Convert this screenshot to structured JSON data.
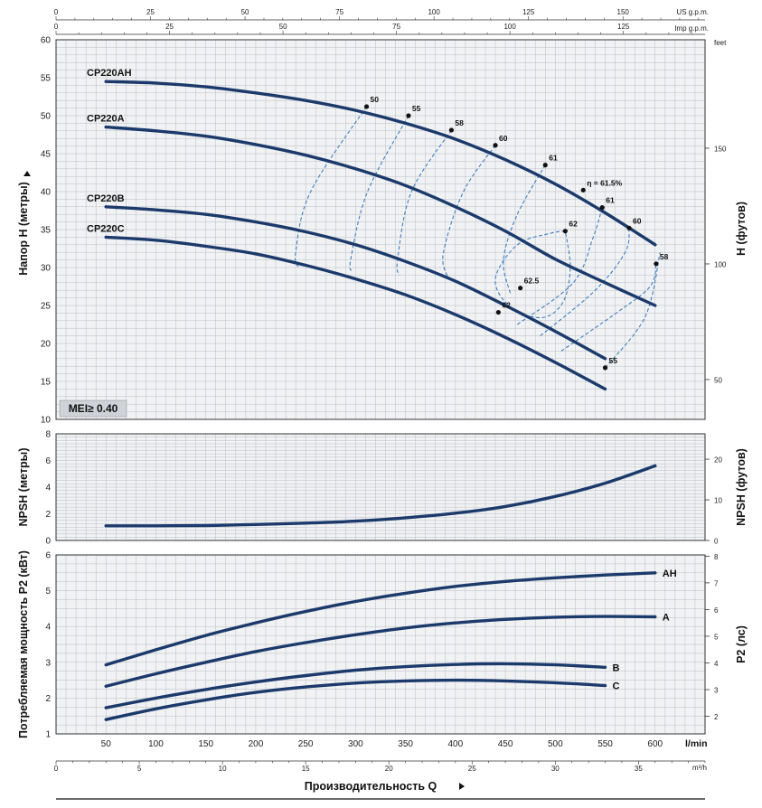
{
  "chart_data": {
    "type": "line",
    "x_axis": {
      "label": "Производительность Q",
      "primary_unit": "l/min",
      "ticks": [
        50,
        100,
        150,
        200,
        250,
        300,
        350,
        400,
        450,
        500,
        550,
        600
      ],
      "range": [
        0,
        650
      ],
      "secondary": [
        {
          "unit": "US g.p.m.",
          "ticks": [
            0,
            25,
            50,
            75,
            100,
            125,
            150
          ],
          "factor": 0.264172
        },
        {
          "unit": "Imp g.p.m.",
          "ticks": [
            0,
            25,
            50,
            75,
            100,
            125
          ],
          "factor": 0.219969
        },
        {
          "unit": "m³/h",
          "ticks": [
            0,
            5,
            10,
            15,
            20,
            25,
            30,
            35
          ],
          "factor": 0.06
        }
      ]
    },
    "panels": [
      {
        "name": "head",
        "ylabel": "Напор H (метры)",
        "ylim": [
          10,
          60
        ],
        "yticks": [
          10,
          15,
          20,
          25,
          30,
          35,
          40,
          45,
          50,
          55,
          60
        ],
        "ylabel_right": "H (футов)",
        "unit_right": "feet",
        "yticks_right": [
          50,
          100,
          150
        ],
        "right_factor": 3.28084,
        "badge": "MEI≥ 0.40",
        "series": [
          {
            "name": "CP220AH",
            "x": [
              50,
              100,
              150,
              200,
              250,
              300,
              350,
              400,
              450,
              500,
              550,
              600
            ],
            "y": [
              54.5,
              54.3,
              53.8,
              53.0,
              52.0,
              50.7,
              49.0,
              46.9,
              44.2,
              41.0,
              37.2,
              33.0
            ]
          },
          {
            "name": "CP220A",
            "x": [
              50,
              100,
              150,
              200,
              250,
              300,
              350,
              400,
              450,
              500,
              550,
              600
            ],
            "y": [
              48.5,
              48.0,
              47.3,
              46.2,
              44.8,
              43.0,
              40.8,
              38.0,
              34.8,
              31.1,
              28.0,
              25.0
            ]
          },
          {
            "name": "CP220B",
            "x": [
              50,
              100,
              150,
              200,
              250,
              300,
              350,
              400,
              450,
              500,
              550
            ],
            "y": [
              38.0,
              37.6,
              37.0,
              36.0,
              34.7,
              33.0,
              30.8,
              28.2,
              25.0,
              21.6,
              18.0
            ]
          },
          {
            "name": "CP220C",
            "x": [
              50,
              100,
              150,
              200,
              250,
              300,
              350,
              400,
              450,
              500,
              550
            ],
            "y": [
              34.0,
              33.6,
              32.8,
              31.8,
              30.3,
              28.5,
              26.4,
              23.8,
              20.8,
              17.5,
              14.0
            ]
          }
        ],
        "efficiency_curves": [
          {
            "label": "50",
            "points": [
              [
                311,
                51.2
              ],
              [
                255,
                40
              ],
              [
                240,
                32
              ],
              [
                243,
                30
              ]
            ]
          },
          {
            "label": "55",
            "points": [
              [
                353,
                50.0
              ],
              [
                312,
                40
              ],
              [
                295,
                31
              ],
              [
                297,
                29.5
              ]
            ]
          },
          {
            "label": "55",
            "points": [
              [
                550,
                16.8
              ],
              [
                590,
                23.5
              ],
              [
                605,
                32
              ]
            ]
          },
          {
            "label": "58",
            "points": [
              [
                396,
                48.1
              ],
              [
                356,
                40
              ],
              [
                342,
                31
              ],
              [
                344,
                29
              ]
            ]
          },
          {
            "label": "58",
            "points": [
              [
                506,
                19
              ],
              [
                561,
                24
              ],
              [
                595,
                27.5
              ],
              [
                601,
                30.5
              ]
            ]
          },
          {
            "label": "60",
            "points": [
              [
                440,
                46.1
              ],
              [
                408,
                40
              ],
              [
                388,
                32
              ],
              [
                392,
                28.8
              ]
            ]
          },
          {
            "label": "60",
            "points": [
              [
                485,
                21
              ],
              [
                540,
                27
              ],
              [
                570,
                32
              ],
              [
                574,
                35.2
              ]
            ]
          },
          {
            "label": "61",
            "points": [
              [
                490,
                43.5
              ],
              [
                462,
                37
              ],
              [
                448,
                31
              ],
              [
                455,
                26.6
              ]
            ]
          },
          {
            "label": "61",
            "points": [
              [
                462,
                22.5
              ],
              [
                518,
                28
              ],
              [
                538,
                34
              ],
              [
                547,
                37.9
              ]
            ]
          },
          {
            "label": "62",
            "points": [
              [
                510,
                34.8
              ],
              [
                495,
                34.5
              ],
              [
                462,
                33
              ],
              [
                440,
                28.5
              ],
              [
                455,
                24.8
              ],
              [
                487,
                23.4
              ],
              [
                508,
                25.5
              ],
              [
                515,
                30
              ],
              [
                510,
                34.8
              ]
            ]
          }
        ],
        "efficiency_labels": [
          {
            "text": "50",
            "x": 311,
            "y": 51.2
          },
          {
            "text": "55",
            "x": 353,
            "y": 50.0
          },
          {
            "text": "58",
            "x": 396,
            "y": 48.1
          },
          {
            "text": "60",
            "x": 440,
            "y": 46.1
          },
          {
            "text": "61",
            "x": 490,
            "y": 43.5
          },
          {
            "text": "η = 61.5%",
            "x": 528,
            "y": 40.2
          },
          {
            "text": "61",
            "x": 547,
            "y": 37.9
          },
          {
            "text": "60",
            "x": 574,
            "y": 35.2
          },
          {
            "text": "58",
            "x": 601,
            "y": 30.5
          },
          {
            "text": "55",
            "x": 550,
            "y": 16.8
          },
          {
            "text": "62",
            "x": 510,
            "y": 34.8
          },
          {
            "text": "62.5",
            "x": 465,
            "y": 27.3
          },
          {
            "text": "62",
            "x": 443,
            "y": 24.1
          }
        ]
      },
      {
        "name": "npsh",
        "ylabel": "NPSH (метры)",
        "ylim": [
          0,
          8
        ],
        "yticks": [
          0,
          2,
          4,
          6,
          8
        ],
        "ylabel_right": "NPSH (футов)",
        "yticks_right": [
          0,
          10,
          20
        ],
        "right_factor": 3.28084,
        "series": [
          {
            "name": "NPSH",
            "x": [
              50,
              100,
              150,
              200,
              250,
              300,
              350,
              400,
              450,
              500,
              550,
              600
            ],
            "y": [
              1.1,
              1.1,
              1.12,
              1.2,
              1.3,
              1.45,
              1.7,
              2.05,
              2.55,
              3.3,
              4.3,
              5.6
            ]
          }
        ]
      },
      {
        "name": "power",
        "ylabel": "Потребляемая мощность P2 (кВт)",
        "ylim": [
          1,
          6
        ],
        "yticks": [
          1,
          2,
          3,
          4,
          5,
          6
        ],
        "ylabel_right": "P2 (лс)",
        "yticks_right": [
          2,
          3,
          4,
          5,
          6,
          7,
          8
        ],
        "right_factor": 1.341,
        "series": [
          {
            "name": "AH",
            "x": [
              50,
              100,
              150,
              200,
              250,
              300,
              350,
              400,
              450,
              500,
              550,
              600
            ],
            "y": [
              2.93,
              3.35,
              3.75,
              4.1,
              4.42,
              4.7,
              4.93,
              5.12,
              5.26,
              5.36,
              5.44,
              5.5
            ]
          },
          {
            "name": "A",
            "x": [
              50,
              100,
              150,
              200,
              250,
              300,
              350,
              400,
              450,
              500,
              550,
              600
            ],
            "y": [
              2.33,
              2.68,
              3.0,
              3.3,
              3.55,
              3.77,
              3.96,
              4.1,
              4.2,
              4.26,
              4.28,
              4.27
            ]
          },
          {
            "name": "B",
            "x": [
              50,
              100,
              150,
              200,
              250,
              300,
              350,
              400,
              450,
              500,
              550
            ],
            "y": [
              1.73,
              2.0,
              2.24,
              2.45,
              2.63,
              2.78,
              2.88,
              2.94,
              2.96,
              2.93,
              2.86
            ]
          },
          {
            "name": "C",
            "x": [
              50,
              100,
              150,
              200,
              250,
              300,
              350,
              400,
              450,
              500,
              550
            ],
            "y": [
              1.4,
              1.7,
              1.95,
              2.16,
              2.31,
              2.42,
              2.48,
              2.5,
              2.48,
              2.43,
              2.35
            ]
          }
        ]
      }
    ]
  }
}
